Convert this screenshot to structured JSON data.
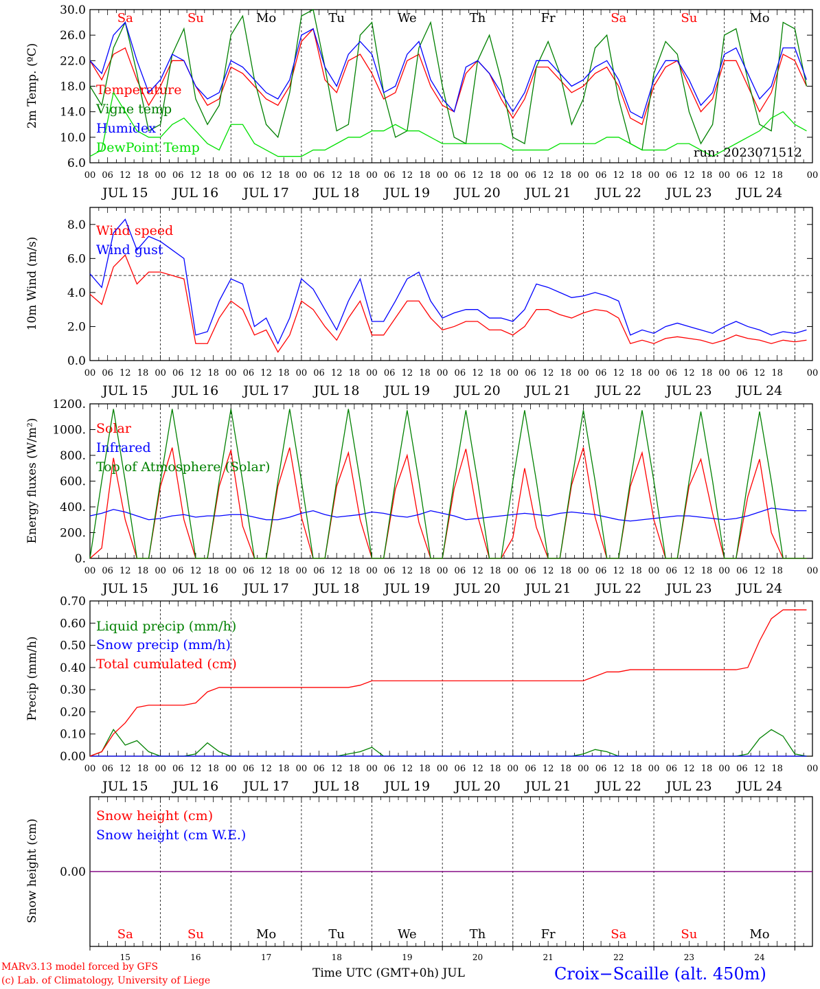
{
  "colors": {
    "red": "#ff0000",
    "green": "#008000",
    "blue": "#0000ff",
    "lightgreen": "#00e000",
    "purple": "#800080",
    "black": "#000000"
  },
  "days_top": [
    "Sa",
    "Su",
    "Mo",
    "Tu",
    "We",
    "Th",
    "Fr",
    "Sa",
    "Su",
    "Mo"
  ],
  "day_colors": [
    "red",
    "red",
    "black",
    "black",
    "black",
    "black",
    "black",
    "red",
    "red",
    "black"
  ],
  "date_labels": [
    "JUL 15",
    "JUL 16",
    "JUL 17",
    "JUL 18",
    "JUL 19",
    "JUL 20",
    "JUL 21",
    "JUL 22",
    "JUL 23",
    "JUL 24"
  ],
  "hour_labels": [
    "00",
    "06",
    "12",
    "18"
  ],
  "hour_end_label": "00",
  "day_numbers": [
    "15",
    "16",
    "17",
    "18",
    "19",
    "20",
    "21",
    "22",
    "23",
    "24"
  ],
  "footer": {
    "model": "MARv3.13 model forced by GFS",
    "lab": "(c) Lab. of Climatology, University of Liege",
    "xlabel": "Time UTC (GMT+0h) JUL",
    "station": "Croix−Scaille (alt. 450m)"
  },
  "chart_data": [
    {
      "id": "temperature",
      "type": "line",
      "ylabel": "2m Temp. (ºC)",
      "ylim": [
        6,
        30
      ],
      "yticks": [
        "30.0",
        "26.0",
        "22.0",
        "18.0",
        "14.0",
        "10.0",
        "6.0"
      ],
      "run_label": "run: 2023071512",
      "x": "hours since JUL 15 00 UTC, step 6",
      "series": [
        {
          "name": "Temperature",
          "color": "red",
          "values": [
            22,
            19,
            23,
            24,
            19,
            15,
            18,
            22,
            22,
            18,
            15,
            16,
            21,
            20,
            18,
            16,
            15,
            18,
            25,
            27,
            19,
            17,
            22,
            23,
            20,
            16,
            17,
            22,
            23,
            18,
            15,
            14,
            20,
            22,
            20,
            16,
            13,
            16,
            21,
            21,
            19,
            17,
            18,
            20,
            21,
            18,
            13,
            12,
            18,
            21,
            22,
            18,
            14,
            16,
            22,
            22,
            18,
            14,
            17,
            23,
            22,
            18
          ]
        },
        {
          "name": "Vigne temp",
          "color": "green",
          "values": [
            18,
            15,
            24,
            28,
            20,
            11,
            12,
            23,
            27,
            16,
            12,
            15,
            26,
            29,
            19,
            12,
            10,
            17,
            29,
            30,
            21,
            11,
            12,
            26,
            28,
            17,
            10,
            11,
            24,
            28,
            18,
            10,
            9,
            22,
            26,
            19,
            10,
            9,
            21,
            25,
            20,
            12,
            16,
            24,
            26,
            16,
            9,
            8,
            20,
            25,
            23,
            14,
            9,
            12,
            26,
            27,
            19,
            12,
            11,
            28,
            27,
            18
          ]
        },
        {
          "name": "Humidex",
          "color": "blue",
          "values": [
            22,
            20,
            26,
            28,
            22,
            17,
            19,
            23,
            22,
            18,
            16,
            17,
            22,
            21,
            19,
            17,
            16,
            19,
            26,
            27,
            21,
            18,
            23,
            25,
            23,
            17,
            18,
            23,
            25,
            19,
            16,
            14,
            21,
            22,
            20,
            17,
            14,
            17,
            22,
            22,
            20,
            18,
            19,
            21,
            22,
            19,
            14,
            13,
            19,
            22,
            22,
            19,
            15,
            17,
            23,
            24,
            20,
            16,
            18,
            24,
            24,
            19
          ]
        },
        {
          "name": "DewPoint Temp",
          "color": "lightgreen",
          "values": [
            7,
            8,
            17,
            14,
            11,
            10,
            10,
            12,
            13,
            11,
            9,
            8,
            12,
            12,
            9,
            8,
            7,
            7,
            7,
            8,
            8,
            9,
            10,
            10,
            11,
            11,
            12,
            11,
            11,
            10,
            9,
            9,
            9,
            9,
            9,
            9,
            8,
            8,
            8,
            8,
            9,
            9,
            9,
            9,
            10,
            10,
            9,
            8,
            8,
            8,
            9,
            9,
            8,
            7,
            8,
            9,
            10,
            11,
            13,
            14,
            12,
            11
          ]
        }
      ]
    },
    {
      "id": "wind",
      "type": "line",
      "ylabel": "10m Wind (m/s)",
      "ylim": [
        0,
        9
      ],
      "yticks": [
        "8.0",
        "6.0",
        "4.0",
        "2.0",
        "0.0"
      ],
      "ref_line": 5,
      "x": "hours since JUL 15 00 UTC, step 6",
      "series": [
        {
          "name": "Wind speed",
          "color": "red",
          "values": [
            3.9,
            3.3,
            5.5,
            6.2,
            4.5,
            5.2,
            5.2,
            5.0,
            4.8,
            1.0,
            1.0,
            2.5,
            3.5,
            3.0,
            1.5,
            1.8,
            0.5,
            1.5,
            3.5,
            3.0,
            2.0,
            1.2,
            2.5,
            3.5,
            1.5,
            1.5,
            2.5,
            3.5,
            3.5,
            2.5,
            1.8,
            2.0,
            2.3,
            2.3,
            1.8,
            1.8,
            1.5,
            2.0,
            3.0,
            3.0,
            2.7,
            2.5,
            2.8,
            3.0,
            2.9,
            2.5,
            1.0,
            1.2,
            1.0,
            1.3,
            1.4,
            1.3,
            1.2,
            1.0,
            1.2,
            1.5,
            1.3,
            1.2,
            1.0,
            1.2,
            1.1,
            1.2
          ]
        },
        {
          "name": "Wind gust",
          "color": "blue",
          "values": [
            5.1,
            4.3,
            7.5,
            8.3,
            6.5,
            7.3,
            7.0,
            6.5,
            6.0,
            1.5,
            1.7,
            3.5,
            4.8,
            4.5,
            2.0,
            2.5,
            1.0,
            2.5,
            4.8,
            4.2,
            3.0,
            1.8,
            3.5,
            4.8,
            2.3,
            2.3,
            3.5,
            4.8,
            5.2,
            3.5,
            2.5,
            2.8,
            3.0,
            3.0,
            2.5,
            2.5,
            2.3,
            3.0,
            4.5,
            4.3,
            4.0,
            3.7,
            3.8,
            4.0,
            3.8,
            3.5,
            1.5,
            1.8,
            1.6,
            2.0,
            2.2,
            2.0,
            1.8,
            1.6,
            2.0,
            2.3,
            2.0,
            1.8,
            1.5,
            1.7,
            1.6,
            1.8
          ]
        }
      ]
    },
    {
      "id": "energy",
      "type": "line",
      "ylabel": "Energy fluxes (W/m²)",
      "ylim": [
        0,
        1200
      ],
      "yticks": [
        "1200.",
        "1000.",
        "800.",
        "600.",
        "400.",
        "200.",
        "0."
      ],
      "x": "hours since JUL 15 00 UTC, step 6",
      "series": [
        {
          "name": "Solar",
          "color": "red",
          "values": [
            0,
            80,
            780,
            300,
            0,
            0,
            560,
            860,
            300,
            0,
            0,
            560,
            840,
            250,
            0,
            0,
            560,
            860,
            320,
            0,
            0,
            560,
            820,
            300,
            0,
            0,
            540,
            800,
            280,
            0,
            0,
            540,
            850,
            330,
            0,
            0,
            160,
            700,
            240,
            0,
            0,
            570,
            860,
            320,
            0,
            0,
            560,
            820,
            300,
            0,
            0,
            560,
            770,
            350,
            0,
            0,
            480,
            770,
            200,
            0,
            0,
            0
          ]
        },
        {
          "name": "Infrared",
          "color": "blue",
          "values": [
            330,
            350,
            380,
            360,
            330,
            300,
            310,
            330,
            340,
            320,
            330,
            330,
            340,
            340,
            320,
            300,
            300,
            320,
            350,
            370,
            340,
            320,
            330,
            340,
            360,
            350,
            330,
            320,
            340,
            370,
            350,
            330,
            300,
            310,
            320,
            330,
            340,
            350,
            340,
            330,
            350,
            360,
            350,
            340,
            320,
            300,
            290,
            300,
            310,
            320,
            330,
            330,
            320,
            310,
            300,
            310,
            330,
            360,
            390,
            380,
            370,
            370
          ]
        },
        {
          "name": "Top of Atmosphere (Solar)",
          "color": "green",
          "values": [
            0,
            600,
            1160,
            600,
            0,
            0,
            600,
            1160,
            600,
            0,
            0,
            600,
            1160,
            600,
            0,
            0,
            600,
            1160,
            600,
            0,
            0,
            600,
            1160,
            600,
            0,
            0,
            600,
            1150,
            600,
            0,
            0,
            600,
            1150,
            600,
            0,
            0,
            600,
            1150,
            600,
            0,
            0,
            600,
            1150,
            600,
            0,
            0,
            600,
            1150,
            600,
            0,
            0,
            600,
            1140,
            600,
            0,
            0,
            600,
            1140,
            600,
            0,
            0,
            0
          ]
        }
      ]
    },
    {
      "id": "precip",
      "type": "line",
      "ylabel": "Precip (mm/h)",
      "ylim": [
        0,
        0.7
      ],
      "yticks": [
        "0.70",
        "0.60",
        "0.50",
        "0.40",
        "0.30",
        "0.20",
        "0.10",
        "0.00"
      ],
      "x": "hours since JUL 15 00 UTC, step 6",
      "series": [
        {
          "name": "Liquid precip (mm/h)",
          "color": "green",
          "values": [
            0,
            0.02,
            0.12,
            0.05,
            0.07,
            0.02,
            0,
            0,
            0,
            0.01,
            0.06,
            0.02,
            0,
            0,
            0,
            0,
            0,
            0,
            0,
            0,
            0,
            0,
            0.01,
            0.02,
            0.04,
            0,
            0,
            0,
            0,
            0,
            0,
            0,
            0,
            0,
            0,
            0,
            0,
            0,
            0,
            0,
            0,
            0,
            0.01,
            0.03,
            0.02,
            0,
            0,
            0,
            0,
            0,
            0,
            0,
            0,
            0,
            0,
            0,
            0.01,
            0.08,
            0.12,
            0.09,
            0.01,
            0
          ]
        },
        {
          "name": "Snow precip (mm/h)",
          "color": "blue",
          "values": [
            0,
            0,
            0,
            0,
            0,
            0,
            0,
            0,
            0,
            0,
            0,
            0,
            0,
            0,
            0,
            0,
            0,
            0,
            0,
            0,
            0,
            0,
            0,
            0,
            0,
            0,
            0,
            0,
            0,
            0,
            0,
            0,
            0,
            0,
            0,
            0,
            0,
            0,
            0,
            0,
            0,
            0,
            0,
            0,
            0,
            0,
            0,
            0,
            0,
            0,
            0,
            0,
            0,
            0,
            0,
            0,
            0,
            0,
            0,
            0,
            0,
            0
          ]
        },
        {
          "name": "Total cumulated (cm)",
          "color": "red",
          "values": [
            0,
            0.02,
            0.1,
            0.15,
            0.22,
            0.23,
            0.23,
            0.23,
            0.23,
            0.24,
            0.29,
            0.31,
            0.31,
            0.31,
            0.31,
            0.31,
            0.31,
            0.31,
            0.31,
            0.31,
            0.31,
            0.31,
            0.31,
            0.32,
            0.34,
            0.34,
            0.34,
            0.34,
            0.34,
            0.34,
            0.34,
            0.34,
            0.34,
            0.34,
            0.34,
            0.34,
            0.34,
            0.34,
            0.34,
            0.34,
            0.34,
            0.34,
            0.34,
            0.36,
            0.38,
            0.38,
            0.39,
            0.39,
            0.39,
            0.39,
            0.39,
            0.39,
            0.39,
            0.39,
            0.39,
            0.39,
            0.4,
            0.52,
            0.62,
            0.66,
            0.66,
            0.66
          ]
        }
      ]
    },
    {
      "id": "snow",
      "type": "line",
      "ylabel": "Snow height (cm)",
      "ylim": [
        -1,
        1
      ],
      "yticks": [
        "0.00"
      ],
      "x": "hours since JUL 15 00 UTC, step 6",
      "series": [
        {
          "name": "Snow height (cm)",
          "color": "red",
          "values": [
            0,
            0
          ]
        },
        {
          "name": "Snow height (cm W.E.)",
          "color": "blue",
          "values": [
            0,
            0
          ]
        }
      ]
    }
  ]
}
